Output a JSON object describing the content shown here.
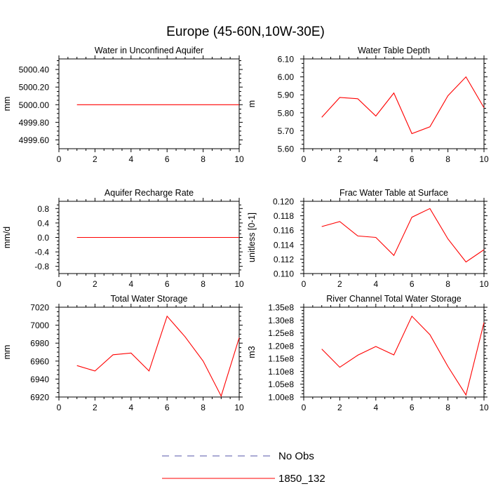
{
  "title": "Europe (45-60N,10W-30E)",
  "legend": {
    "position": "bottom-center",
    "entries": [
      {
        "label": "No Obs",
        "color": "#5555aa",
        "dash": true
      },
      {
        "label": "1850_132",
        "color": "#ff0000",
        "dash": false
      }
    ]
  },
  "line_color": "#ff0000",
  "chart_data": [
    {
      "type": "line",
      "title": "Water in Unconfined Aquifer",
      "ylabel": "mm",
      "xlabel": "",
      "xlim": [
        0,
        10
      ],
      "ylim": [
        4999.5,
        5000.52
      ],
      "xticks": [
        0,
        2,
        4,
        6,
        8,
        10
      ],
      "yticks": [
        4999.6,
        4999.8,
        5000.0,
        5000.2,
        5000.4
      ],
      "ytick_labels": [
        "4999.60",
        "4999.80",
        "5000.00",
        "5000.20",
        "5000.40"
      ],
      "series": [
        {
          "name": "1850_132",
          "x": [
            1,
            2,
            3,
            4,
            5,
            6,
            7,
            8,
            9,
            10
          ],
          "values": [
            5000,
            5000,
            5000,
            5000,
            5000,
            5000,
            5000,
            5000,
            5000,
            5000
          ]
        }
      ]
    },
    {
      "type": "line",
      "title": "Water Table Depth",
      "ylabel": "m",
      "xlabel": "",
      "xlim": [
        0,
        10
      ],
      "ylim": [
        5.6,
        6.1
      ],
      "xticks": [
        0,
        2,
        4,
        6,
        8,
        10
      ],
      "yticks": [
        5.6,
        5.7,
        5.8,
        5.9,
        6.0,
        6.1
      ],
      "ytick_labels": [
        "5.60",
        "5.70",
        "5.80",
        "5.90",
        "6.00",
        "6.10"
      ],
      "series": [
        {
          "name": "1850_132",
          "x": [
            1,
            2,
            3,
            4,
            5,
            6,
            7,
            8,
            9,
            10
          ],
          "values": [
            5.775,
            5.885,
            5.878,
            5.782,
            5.91,
            5.684,
            5.722,
            5.895,
            6.0,
            5.828
          ]
        }
      ]
    },
    {
      "type": "line",
      "title": "Aquifer Recharge Rate",
      "ylabel": "mm/d",
      "xlabel": "",
      "xlim": [
        0,
        10
      ],
      "ylim": [
        -1.0,
        1.0
      ],
      "xticks": [
        0,
        2,
        4,
        6,
        8,
        10
      ],
      "yticks": [
        -0.8,
        -0.4,
        0.0,
        0.4,
        0.8
      ],
      "ytick_labels": [
        "-0.8",
        "-0.4",
        "0.0",
        "0.4",
        "0.8"
      ],
      "series": [
        {
          "name": "1850_132",
          "x": [
            1,
            2,
            3,
            4,
            5,
            6,
            7,
            8,
            9,
            10
          ],
          "values": [
            0,
            0,
            0,
            0,
            0,
            0,
            0,
            0,
            0,
            0
          ]
        }
      ]
    },
    {
      "type": "line",
      "title": "Frac Water Table at Surface",
      "ylabel": "unitless [0-1]",
      "xlabel": "",
      "xlim": [
        0,
        10
      ],
      "ylim": [
        0.11,
        0.12
      ],
      "xticks": [
        0,
        2,
        4,
        6,
        8,
        10
      ],
      "yticks": [
        0.11,
        0.112,
        0.114,
        0.116,
        0.118,
        0.12
      ],
      "ytick_labels": [
        "0.110",
        "0.112",
        "0.114",
        "0.116",
        "0.118",
        "0.120"
      ],
      "series": [
        {
          "name": "1850_132",
          "x": [
            1,
            2,
            3,
            4,
            5,
            6,
            7,
            8,
            9,
            10
          ],
          "values": [
            0.1165,
            0.1172,
            0.1152,
            0.115,
            0.1125,
            0.1178,
            0.119,
            0.1148,
            0.1116,
            0.1133
          ]
        }
      ]
    },
    {
      "type": "line",
      "title": "Total Water Storage",
      "ylabel": "mm",
      "xlabel": "",
      "xlim": [
        0,
        10
      ],
      "ylim": [
        6920,
        7020
      ],
      "xticks": [
        0,
        2,
        4,
        6,
        8,
        10
      ],
      "yticks": [
        6920,
        6940,
        6960,
        6980,
        7000,
        7020
      ],
      "ytick_labels": [
        "6920",
        "6940",
        "6960",
        "6980",
        "7000",
        "7020"
      ],
      "series": [
        {
          "name": "1850_132",
          "x": [
            1,
            2,
            3,
            4,
            5,
            6,
            7,
            8,
            9,
            10
          ],
          "values": [
            6955,
            6949,
            6967,
            6969,
            6949,
            7010,
            6987,
            6960,
            6921,
            6986
          ]
        }
      ]
    },
    {
      "type": "line",
      "title": "River Channel Total Water Storage",
      "ylabel": "m3",
      "xlabel": "",
      "xlim": [
        0,
        10
      ],
      "ylim": [
        100000000.0,
        135000000.0
      ],
      "xticks": [
        0,
        2,
        4,
        6,
        8,
        10
      ],
      "yticks": [
        100000000.0,
        105000000.0,
        110000000.0,
        115000000.0,
        120000000.0,
        125000000.0,
        130000000.0,
        135000000.0
      ],
      "ytick_labels": [
        "1.00e8",
        "1.05e8",
        "1.10e8",
        "1.15e8",
        "1.20e8",
        "1.25e8",
        "1.30e8",
        "1.35e8"
      ],
      "series": [
        {
          "name": "1850_132",
          "x": [
            1,
            2,
            3,
            4,
            5,
            6,
            7,
            8,
            9,
            10
          ],
          "values": [
            118700000.0,
            111600000.0,
            116300000.0,
            119700000.0,
            116400000.0,
            131500000.0,
            124300000.0,
            111900000.0,
            100800000.0,
            129000000.0
          ]
        }
      ]
    }
  ]
}
